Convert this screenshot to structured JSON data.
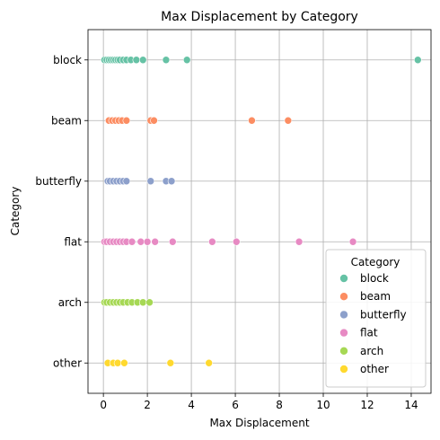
{
  "chart_data": {
    "type": "scatter",
    "title": "Max Displacement by Category",
    "xlabel": "Max Displacement",
    "ylabel": "Category",
    "xlim": [
      -0.7,
      14.9
    ],
    "xticks": [
      0,
      2,
      4,
      6,
      8,
      10,
      12,
      14
    ],
    "categories": [
      "block",
      "beam",
      "butterfly",
      "flat",
      "arch",
      "other"
    ],
    "grid": true,
    "legend": {
      "title": "Category",
      "placement": "bottom-right"
    },
    "series": [
      {
        "name": "block",
        "color": "#66c2a5",
        "x": [
          0.05,
          0.15,
          0.25,
          0.35,
          0.45,
          0.55,
          0.65,
          0.75,
          0.9,
          1.05,
          1.25,
          1.5,
          1.8,
          2.85,
          3.8,
          14.3
        ]
      },
      {
        "name": "beam",
        "color": "#fc8d62",
        "x": [
          0.25,
          0.4,
          0.55,
          0.7,
          0.85,
          1.05,
          2.15,
          2.3,
          6.75,
          8.4
        ]
      },
      {
        "name": "butterfly",
        "color": "#8da0cb",
        "x": [
          0.2,
          0.3,
          0.45,
          0.6,
          0.75,
          0.9,
          1.05,
          2.15,
          2.85,
          3.1
        ]
      },
      {
        "name": "flat",
        "color": "#e78ac3",
        "x": [
          0.05,
          0.15,
          0.3,
          0.45,
          0.6,
          0.75,
          0.9,
          1.05,
          1.3,
          1.7,
          2.0,
          2.35,
          3.15,
          4.95,
          6.05,
          8.9,
          11.35
        ]
      },
      {
        "name": "arch",
        "color": "#a6d854",
        "x": [
          0.05,
          0.15,
          0.3,
          0.45,
          0.6,
          0.75,
          0.9,
          1.1,
          1.3,
          1.55,
          1.8,
          2.1
        ]
      },
      {
        "name": "other",
        "color": "#ffd92f",
        "x": [
          0.2,
          0.45,
          0.65,
          0.95,
          3.05,
          4.8
        ]
      }
    ]
  }
}
